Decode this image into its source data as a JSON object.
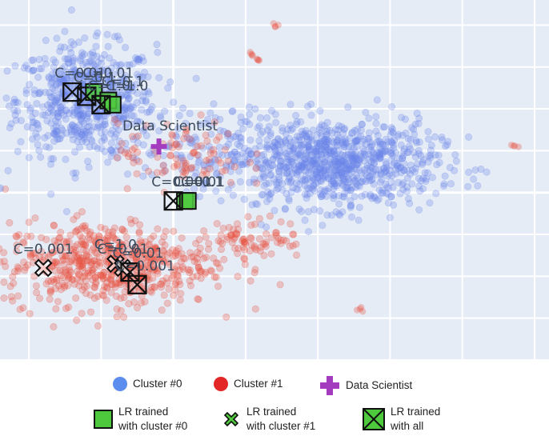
{
  "chart_data": {
    "type": "scatter",
    "title": "",
    "xlabel": "",
    "ylabel": "",
    "grid": true,
    "xlim": [
      -1.2,
      2.6
    ],
    "ylim": [
      -2.0,
      2.3
    ],
    "clusters": [
      {
        "name": "Cluster #0",
        "color": "#6b86e8",
        "blobs": [
          {
            "cx": -0.6,
            "cy": 1.1,
            "sx": 0.24,
            "sy": 0.33,
            "n": 650
          },
          {
            "cx": 1.1,
            "cy": 0.35,
            "sx": 0.36,
            "sy": 0.26,
            "n": 900
          },
          {
            "cx": 0.25,
            "cy": 0.55,
            "sx": 0.28,
            "sy": 0.25,
            "n": 120
          }
        ]
      },
      {
        "name": "Cluster #1",
        "color": "#e8503e",
        "blobs": [
          {
            "cx": -0.45,
            "cy": -0.85,
            "sx": 0.36,
            "sy": 0.25,
            "n": 620
          },
          {
            "cx": 0.05,
            "cy": 0.45,
            "sx": 0.22,
            "sy": 0.2,
            "n": 90
          },
          {
            "cx": 0.55,
            "cy": -0.55,
            "sx": 0.18,
            "sy": 0.12,
            "n": 80
          }
        ],
        "outliers": [
          [
            0.7,
            2.0
          ],
          [
            0.55,
            1.65
          ],
          [
            2.35,
            0.55
          ],
          [
            1.3,
            -1.4
          ],
          [
            0.6,
            1.6
          ]
        ]
      }
    ],
    "outlier_cluster0": [
      [
        -1.2,
        0.05
      ]
    ],
    "data_scientist": {
      "label": "Data Scientist",
      "x": -0.1,
      "y": 0.55
    },
    "lr_cluster0": [
      {
        "label": "C=0.01",
        "x": -0.55,
        "y": 1.2
      },
      {
        "label": "C=0.1",
        "x": -0.45,
        "y": 1.1
      },
      {
        "label": "C=1.0",
        "x": -0.42,
        "y": 1.05
      },
      {
        "label": "C=0.01",
        "x": 0.08,
        "y": -0.1
      },
      {
        "label": "C=0.1",
        "x": 0.1,
        "y": -0.1
      }
    ],
    "lr_cluster1": [
      {
        "label": "C=0.001",
        "x": -0.9,
        "y": -0.9
      },
      {
        "label": "C=1.0",
        "x": -0.4,
        "y": -0.85
      },
      {
        "label": "C=0.01",
        "x": -0.35,
        "y": -0.9
      }
    ],
    "lr_all": [
      {
        "label": "C=0.01",
        "x": -0.7,
        "y": 1.2
      },
      {
        "label": "C=0.1",
        "x": -0.6,
        "y": 1.15
      },
      {
        "label": "C=1.0",
        "x": -0.5,
        "y": 1.05
      },
      {
        "label": "C=0.001",
        "x": 0.0,
        "y": -0.1
      },
      {
        "label": "C=0.01",
        "x": -0.3,
        "y": -0.95
      },
      {
        "label": "C=0.001",
        "x": -0.25,
        "y": -1.1
      }
    ],
    "legend": [
      {
        "label": "Cluster #0"
      },
      {
        "label": "Cluster #1"
      },
      {
        "label": "Data Scientist"
      },
      {
        "label": "LR trained\nwith cluster #0"
      },
      {
        "label": "LR trained\nwith cluster #1"
      },
      {
        "label": "LR trained\nwith all"
      }
    ],
    "legend_position": "bottom"
  }
}
